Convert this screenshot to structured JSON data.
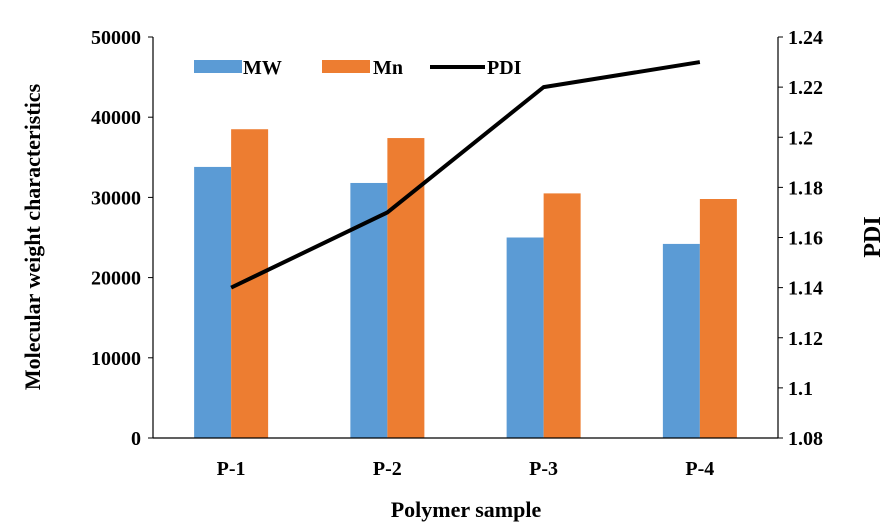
{
  "chart_data": {
    "type": "bar",
    "categories": [
      "P-1",
      "P-2",
      "P-3",
      "P-4"
    ],
    "series": [
      {
        "name": "MW",
        "kind": "bar",
        "axis": "left",
        "values": [
          33800,
          31800,
          25000,
          24200
        ]
      },
      {
        "name": "Mn",
        "kind": "bar",
        "axis": "left",
        "values": [
          38500,
          37400,
          30500,
          29800
        ]
      },
      {
        "name": "PDI",
        "kind": "line",
        "axis": "right",
        "values": [
          1.14,
          1.17,
          1.22,
          1.23
        ]
      }
    ],
    "xlabel": "Polymer sample",
    "ylabel": "Molecular weight characteristics",
    "y2label": "PDI",
    "ylim": [
      0,
      50000
    ],
    "yticks": [
      "0",
      "10000",
      "20000",
      "30000",
      "40000",
      "50000"
    ],
    "y2lim": [
      1.08,
      1.24
    ],
    "y2ticks": [
      "1.08",
      "1.1",
      "1.12",
      "1.14",
      "1.16",
      "1.18",
      "1.2",
      "1.22",
      "1.24"
    ],
    "grid": false,
    "legend_position": "top-left",
    "colors": {
      "MW": "#5b9bd5",
      "Mn": "#ed7d31",
      "PDI": "#000000"
    }
  }
}
